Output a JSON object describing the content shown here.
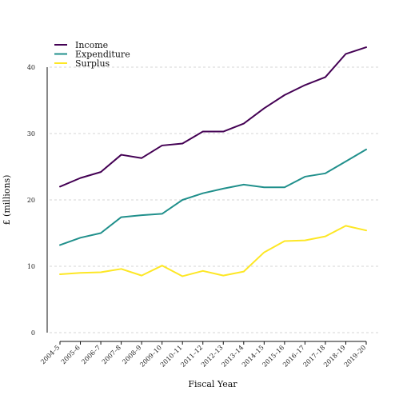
{
  "chart_data": {
    "type": "line",
    "title": "",
    "xlabel": "Fiscal Year",
    "ylabel": "£ (millions)",
    "categories": [
      "2004–5",
      "2005–6",
      "2006–7",
      "2007–8",
      "2008–9",
      "2009–10",
      "2010–11",
      "2011–12",
      "2012–13",
      "2013–14",
      "2014–15",
      "2015–16",
      "2016–17",
      "2017–18",
      "2018–19",
      "2019–20"
    ],
    "yticks": [
      "0",
      "10",
      "20",
      "30",
      "40"
    ],
    "ylim": [
      0,
      40
    ],
    "grid": "horizontal dashed",
    "legend_position": "top-left",
    "series": [
      {
        "name": "Income",
        "color": "#440154",
        "values": [
          22.0,
          23.3,
          24.2,
          26.8,
          26.3,
          28.2,
          28.5,
          30.3,
          30.3,
          31.5,
          33.8,
          35.8,
          37.3,
          38.5,
          42.0,
          43.0
        ]
      },
      {
        "name": "Expenditure",
        "color": "#21908C",
        "values": [
          13.2,
          14.3,
          15.0,
          17.4,
          17.7,
          17.9,
          20.0,
          21.0,
          21.7,
          22.3,
          21.9,
          21.9,
          23.5,
          24.0,
          25.8,
          27.6
        ]
      },
      {
        "name": "Surplus",
        "color": "#FDE725",
        "values": [
          8.8,
          9.0,
          9.1,
          9.6,
          8.6,
          10.1,
          8.5,
          9.3,
          8.6,
          9.2,
          12.1,
          13.8,
          13.9,
          14.5,
          16.1,
          15.4
        ]
      }
    ]
  }
}
